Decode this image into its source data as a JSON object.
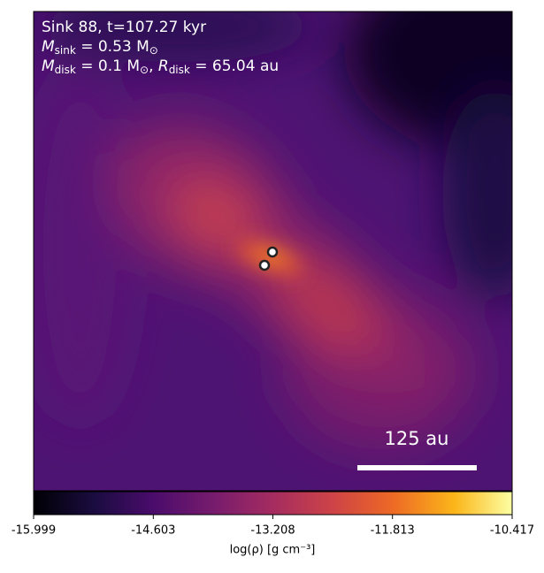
{
  "chart_data": {
    "type": "image",
    "annotations": {
      "line1": "Sink 88, t=107.27 kyr",
      "line2": {
        "symbol": "M",
        "subscript": "sink",
        "rest": " = 0.53 M",
        "unit_subscript": "⊙"
      },
      "line3": {
        "symbol": "M",
        "subscript": "disk",
        "rest": " = 0.1 M",
        "unit_subscript": "⊙",
        "sep": ", ",
        "symbol2": "R",
        "subscript2": "disk",
        "rest2": " = 65.04 au"
      },
      "scale_bar": "125 au"
    },
    "colorbar": {
      "label": "log(ρ) [g cm⁻³]",
      "xlim": [
        -15.999,
        -10.417
      ],
      "xticks": [
        -15.999,
        -14.603,
        -13.208,
        -11.813,
        -10.417
      ]
    }
  }
}
